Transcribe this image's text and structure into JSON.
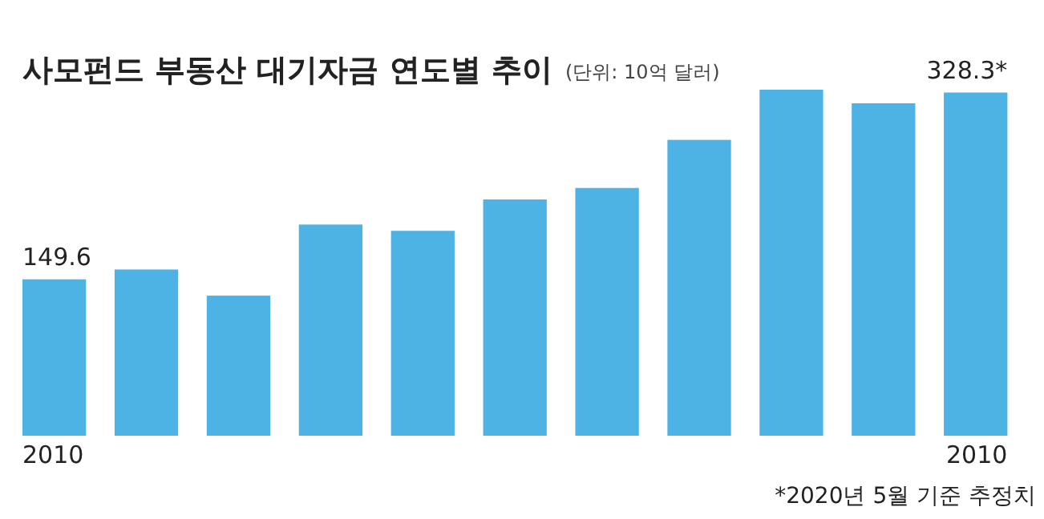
{
  "chart_data": {
    "type": "bar",
    "title": "사모펀드 부동산 대기자금 연도별 추이",
    "subtitle": "(단위: 10억 달러)",
    "categories": [
      "2010",
      null,
      null,
      null,
      null,
      null,
      null,
      null,
      null,
      null,
      "2010"
    ],
    "values": [
      149.6,
      159,
      134,
      202,
      196,
      226,
      237,
      283,
      331,
      318,
      328.3
    ],
    "value_labels": [
      "149.6",
      null,
      null,
      null,
      null,
      null,
      null,
      null,
      null,
      null,
      "328.3*"
    ],
    "color": "#4db3e4",
    "annotations": [
      "*2020년 5월 기준 추정치"
    ]
  }
}
